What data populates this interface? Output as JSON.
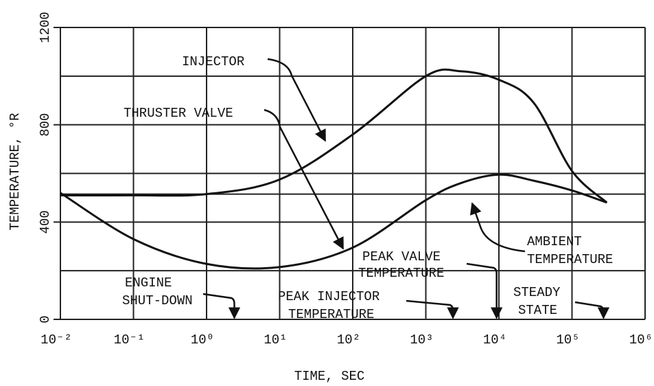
{
  "chart_data": {
    "type": "line",
    "x_label": "TIME, SEC",
    "y_label": "TEMPERATURE, °R",
    "xscale": "log",
    "grid": true,
    "xlim": [
      0.01,
      1000000
    ],
    "xticks": [
      {
        "value": 0.01,
        "label": "10⁻²"
      },
      {
        "value": 0.1,
        "label": "10⁻¹"
      },
      {
        "value": 1,
        "label": "10⁰"
      },
      {
        "value": 10,
        "label": "10¹"
      },
      {
        "value": 100,
        "label": "10²"
      },
      {
        "value": 1000,
        "label": "10³"
      },
      {
        "value": 10000,
        "label": "10⁴"
      },
      {
        "value": 100000,
        "label": "10⁵"
      },
      {
        "value": 1000000,
        "label": "10⁶"
      }
    ],
    "ylim": [
      0,
      1200
    ],
    "yticks": [
      0,
      400,
      800,
      1200
    ],
    "yminor": [
      200,
      600,
      1000
    ],
    "ambient": 515,
    "x": [
      0.01,
      0.1,
      1,
      10,
      100,
      1000,
      3000,
      10000,
      30000,
      100000,
      300000
    ],
    "series": [
      {
        "name": "INJECTOR",
        "color": "#111111",
        "values": [
          510,
          510,
          515,
          575,
          760,
          1000,
          1020,
          985,
          890,
          610,
          480
        ]
      },
      {
        "name": "THRUSTER VALVE",
        "color": "#111111",
        "values": [
          520,
          330,
          228,
          215,
          295,
          490,
          560,
          595,
          570,
          530,
          480
        ]
      }
    ],
    "ambient_label": [
      "AMBIENT",
      "TEMPERATURE"
    ],
    "events": [
      {
        "x": 2.4,
        "label": [
          "ENGINE",
          "SHUT-DOWN"
        ]
      },
      {
        "x": 2350,
        "label": [
          "PEAK INJECTOR",
          "TEMPERATURE"
        ]
      },
      {
        "x": 9300,
        "label": [
          "PEAK VALVE",
          "TEMPERATURE"
        ]
      },
      {
        "x": 270000,
        "label": [
          "STEADY",
          "STATE"
        ]
      }
    ]
  }
}
